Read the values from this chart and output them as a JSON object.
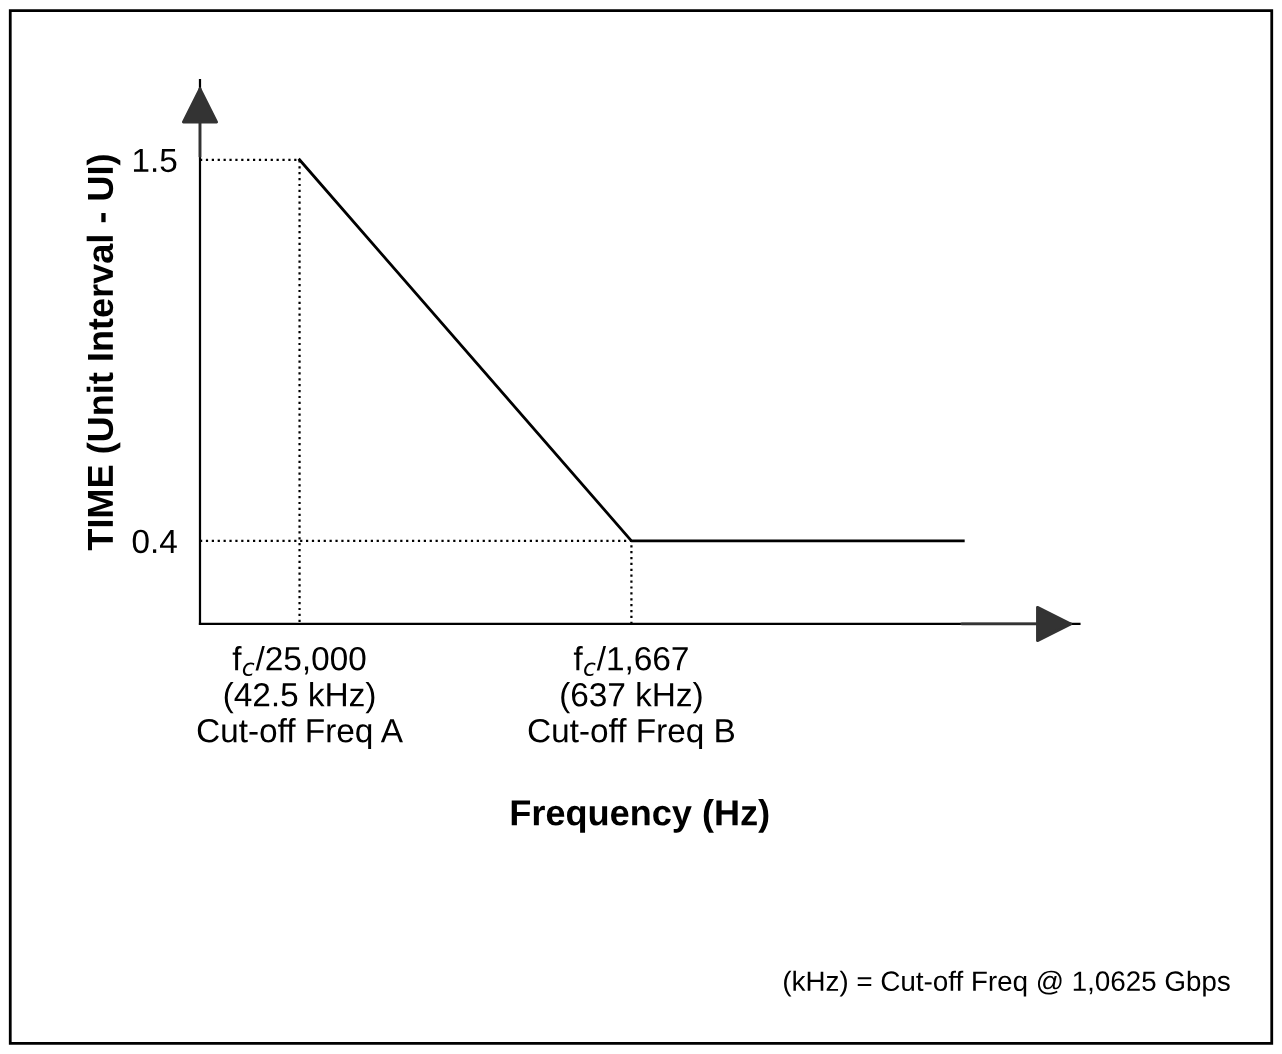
{
  "chart_data": {
    "type": "line",
    "xlabel": "Frequency (Hz)",
    "ylabel": "TIME (Unit Interval - UI)",
    "categories": [
      "f$_{c}$/25,000\n(42.5 kHz)\nCut-off Freq A",
      "f$_{c}$/1,667\n(637 kHz)\nCut-off Freq B",
      null
    ],
    "series": [
      {
        "color": "#000000",
        "values": [
          1.5,
          0.4,
          0.4
        ]
      }
    ],
    "ylim": [
      0.16,
      1.73
    ],
    "yticks": [
      1.5,
      0.4
    ],
    "ref_lines": [
      {
        "axis": "y",
        "value": 1.5,
        "line_style": "dotted"
      },
      {
        "axis": "y",
        "value": 0.4,
        "line_style": "dotted"
      }
    ],
    "annotations": [
      "(kHz) = Cut-off Freq @ 1,0625 Gbps"
    ],
    "grid": false,
    "legend": false,
    "marker": "none",
    "line_style": "solid"
  }
}
